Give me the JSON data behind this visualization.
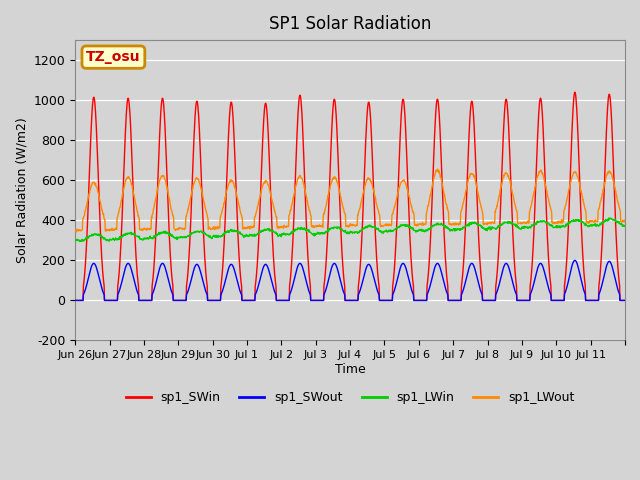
{
  "title": "SP1 Solar Radiation",
  "ylabel": "Solar Radiation (W/m2)",
  "xlabel": "Time",
  "ylim": [
    -200,
    1300
  ],
  "yticks": [
    -200,
    0,
    200,
    400,
    600,
    800,
    1000,
    1200
  ],
  "bg_color": "#d4d4d4",
  "grid_color": "#ffffff",
  "annotation_text": "TZ_osu",
  "annotation_bg": "#ffffcc",
  "annotation_border": "#cc8800",
  "annotation_text_color": "#cc0000",
  "line_colors": {
    "SWin": "#ff0000",
    "SWout": "#0000ff",
    "LWin": "#00cc00",
    "LWout": "#ff8800"
  },
  "legend_labels": [
    "sp1_SWin",
    "sp1_SWout",
    "sp1_LWin",
    "sp1_LWout"
  ],
  "total_days": 16,
  "tick_labels": [
    "Jun 26",
    "Jun 27",
    "Jun 28",
    "Jun 29",
    "Jun 30",
    "Jul 1",
    "Jul 2",
    "Jul 3",
    "Jul 4",
    "Jul 5",
    "Jul 6",
    "Jul 7",
    "Jul 8",
    "Jul 9",
    "Jul 10",
    "Jul 11",
    ""
  ],
  "SWin_peaks": [
    1015,
    1010,
    1010,
    995,
    990,
    985,
    1025,
    1005,
    990,
    1005,
    1005,
    995,
    1005,
    1010,
    1040,
    1030
  ],
  "SWout_peaks": [
    185,
    185,
    185,
    180,
    180,
    180,
    185,
    185,
    180,
    185,
    185,
    185,
    185,
    185,
    200,
    195
  ],
  "LWout_peaks": [
    590,
    615,
    625,
    610,
    600,
    595,
    620,
    615,
    610,
    600,
    650,
    635,
    635,
    645,
    640,
    645
  ]
}
